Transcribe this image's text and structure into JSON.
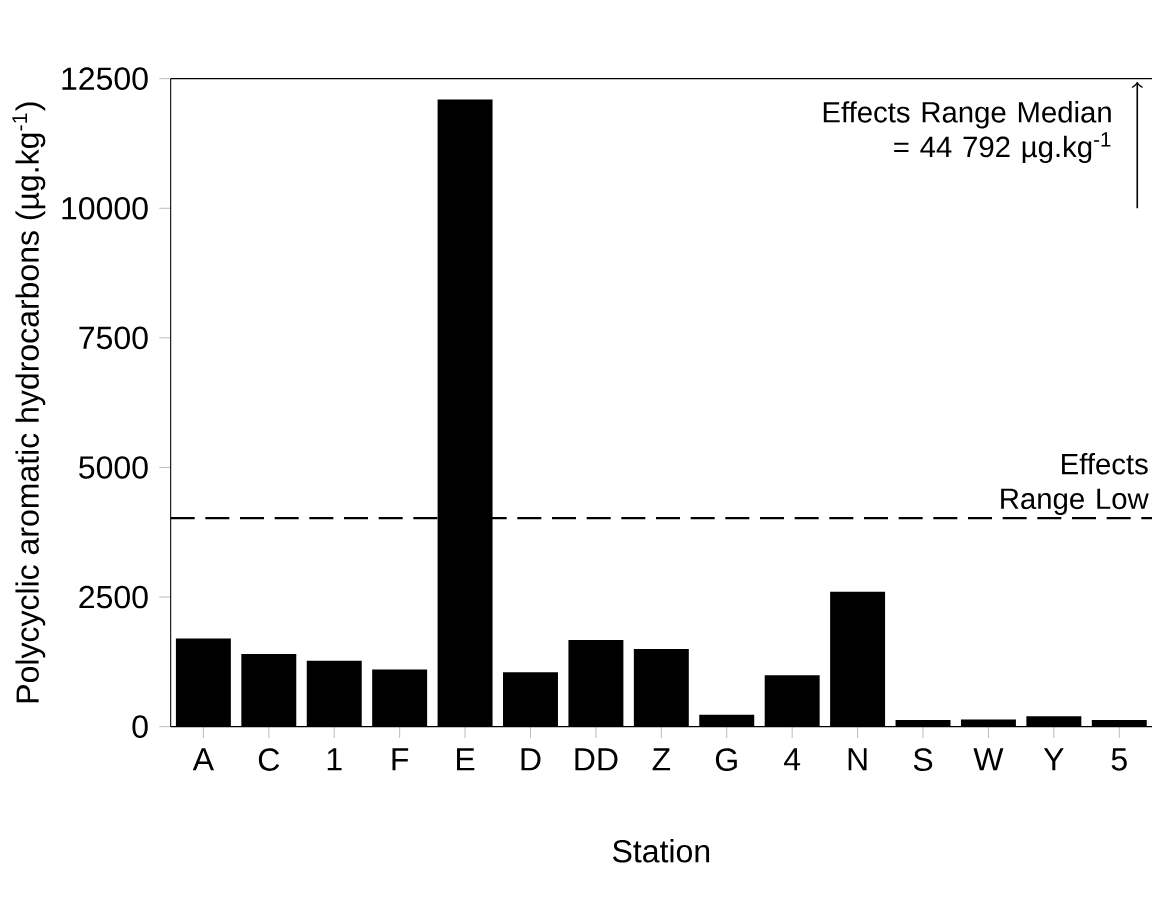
{
  "chart_data": {
    "type": "bar",
    "xlabel": "Station",
    "ylabel": "Polycyclic aromatic hydrocarbons (µg.kg$^{-1}$)",
    "categories": [
      "A",
      "C",
      "1",
      "F",
      "E",
      "D",
      "DD",
      "Z",
      "G",
      "4",
      "N",
      "S",
      "W",
      "Y",
      "5"
    ],
    "values": [
      1700,
      1400,
      1270,
      1100,
      12100,
      1050,
      1670,
      1500,
      230,
      990,
      2600,
      130,
      140,
      200,
      130
    ],
    "color": "#000000",
    "ylim": [
      0,
      12500
    ],
    "yticks": [
      0,
      2500,
      5000,
      7500,
      10000,
      12500
    ],
    "ref_lines": [
      {
        "axis": "y",
        "value": 4022,
        "label": "Effects Range Low",
        "color": "#000000",
        "line_style": "dashed"
      }
    ],
    "annotations": [
      "Effects Range Median = 44 792  µg.kg$^{-1}$"
    ]
  }
}
